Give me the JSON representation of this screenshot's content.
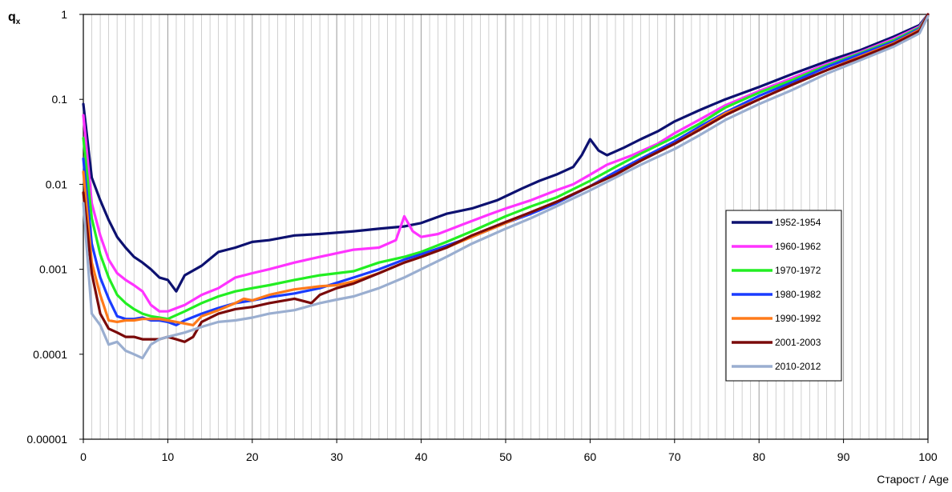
{
  "chart_data": {
    "type": "line",
    "ylabel": "q",
    "ylabel_sub": "x",
    "xlabel": "Старост / Age",
    "y_scale": "log",
    "xlim": [
      0,
      100
    ],
    "ylim": [
      1e-05,
      1
    ],
    "x_ticks": [
      "0",
      "10",
      "20",
      "30",
      "40",
      "50",
      "60",
      "70",
      "80",
      "90",
      "100"
    ],
    "y_ticks": [
      "0.00001",
      "0.0001",
      "0.001",
      "0.01",
      "0.1",
      "1"
    ],
    "grid": "vertical minor lines at every year",
    "legend_position": "lower-right",
    "series": [
      {
        "name": "1952-1954",
        "color": "#0d1170",
        "points": [
          [
            0,
            0.088
          ],
          [
            1,
            0.012
          ],
          [
            2,
            0.0065
          ],
          [
            3,
            0.0038
          ],
          [
            4,
            0.0024
          ],
          [
            5,
            0.0018
          ],
          [
            6,
            0.0014
          ],
          [
            7,
            0.0012
          ],
          [
            8,
            0.001
          ],
          [
            9,
            0.0008
          ],
          [
            10,
            0.00075
          ],
          [
            11,
            0.00055
          ],
          [
            12,
            0.00085
          ],
          [
            14,
            0.0011
          ],
          [
            16,
            0.0016
          ],
          [
            18,
            0.0018
          ],
          [
            20,
            0.0021
          ],
          [
            22,
            0.0022
          ],
          [
            25,
            0.0025
          ],
          [
            28,
            0.0026
          ],
          [
            32,
            0.0028
          ],
          [
            35,
            0.003
          ],
          [
            38,
            0.0032
          ],
          [
            40,
            0.0035
          ],
          [
            43,
            0.0045
          ],
          [
            46,
            0.0052
          ],
          [
            49,
            0.0065
          ],
          [
            52,
            0.009
          ],
          [
            54,
            0.011
          ],
          [
            56,
            0.013
          ],
          [
            58,
            0.016
          ],
          [
            59,
            0.022
          ],
          [
            60,
            0.034
          ],
          [
            61,
            0.025
          ],
          [
            62,
            0.022
          ],
          [
            64,
            0.027
          ],
          [
            66,
            0.034
          ],
          [
            68,
            0.042
          ],
          [
            70,
            0.055
          ],
          [
            73,
            0.075
          ],
          [
            76,
            0.1
          ],
          [
            80,
            0.14
          ],
          [
            84,
            0.2
          ],
          [
            88,
            0.28
          ],
          [
            92,
            0.38
          ],
          [
            96,
            0.55
          ],
          [
            99,
            0.75
          ],
          [
            100,
            1
          ]
        ]
      },
      {
        "name": "1960-1962",
        "color": "#ff33ff",
        "points": [
          [
            0,
            0.065
          ],
          [
            1,
            0.006
          ],
          [
            2,
            0.0025
          ],
          [
            3,
            0.0013
          ],
          [
            4,
            0.0009
          ],
          [
            5,
            0.00075
          ],
          [
            6,
            0.00065
          ],
          [
            7,
            0.00055
          ],
          [
            8,
            0.00038
          ],
          [
            9,
            0.00032
          ],
          [
            10,
            0.00032
          ],
          [
            12,
            0.00038
          ],
          [
            14,
            0.0005
          ],
          [
            16,
            0.0006
          ],
          [
            18,
            0.0008
          ],
          [
            20,
            0.0009
          ],
          [
            22,
            0.001
          ],
          [
            25,
            0.0012
          ],
          [
            28,
            0.0014
          ],
          [
            32,
            0.0017
          ],
          [
            35,
            0.0018
          ],
          [
            37,
            0.0022
          ],
          [
            38,
            0.0042
          ],
          [
            39,
            0.0028
          ],
          [
            40,
            0.0024
          ],
          [
            42,
            0.0026
          ],
          [
            45,
            0.0034
          ],
          [
            48,
            0.0044
          ],
          [
            50,
            0.0052
          ],
          [
            53,
            0.0065
          ],
          [
            56,
            0.0085
          ],
          [
            58,
            0.01
          ],
          [
            60,
            0.013
          ],
          [
            62,
            0.017
          ],
          [
            65,
            0.022
          ],
          [
            68,
            0.03
          ],
          [
            70,
            0.04
          ],
          [
            73,
            0.058
          ],
          [
            76,
            0.085
          ],
          [
            80,
            0.125
          ],
          [
            84,
            0.18
          ],
          [
            88,
            0.26
          ],
          [
            92,
            0.36
          ],
          [
            96,
            0.52
          ],
          [
            99,
            0.72
          ],
          [
            100,
            1
          ]
        ]
      },
      {
        "name": "1970-1972",
        "color": "#22ee22",
        "points": [
          [
            0,
            0.035
          ],
          [
            1,
            0.004
          ],
          [
            2,
            0.0015
          ],
          [
            3,
            0.0008
          ],
          [
            4,
            0.0005
          ],
          [
            5,
            0.0004
          ],
          [
            6,
            0.00034
          ],
          [
            7,
            0.0003
          ],
          [
            8,
            0.00028
          ],
          [
            9,
            0.00027
          ],
          [
            10,
            0.00026
          ],
          [
            12,
            0.00032
          ],
          [
            14,
            0.0004
          ],
          [
            16,
            0.00048
          ],
          [
            18,
            0.00055
          ],
          [
            20,
            0.0006
          ],
          [
            22,
            0.00065
          ],
          [
            25,
            0.00075
          ],
          [
            28,
            0.00085
          ],
          [
            32,
            0.00095
          ],
          [
            35,
            0.0012
          ],
          [
            38,
            0.0014
          ],
          [
            40,
            0.0016
          ],
          [
            43,
            0.0021
          ],
          [
            46,
            0.0028
          ],
          [
            50,
            0.0042
          ],
          [
            53,
            0.0055
          ],
          [
            56,
            0.007
          ],
          [
            60,
            0.011
          ],
          [
            63,
            0.016
          ],
          [
            66,
            0.023
          ],
          [
            70,
            0.036
          ],
          [
            73,
            0.052
          ],
          [
            76,
            0.08
          ],
          [
            80,
            0.12
          ],
          [
            84,
            0.17
          ],
          [
            88,
            0.25
          ],
          [
            92,
            0.35
          ],
          [
            96,
            0.5
          ],
          [
            99,
            0.7
          ],
          [
            100,
            1
          ]
        ]
      },
      {
        "name": "1980-1982",
        "color": "#1a3cff",
        "points": [
          [
            0,
            0.02
          ],
          [
            1,
            0.002
          ],
          [
            2,
            0.0008
          ],
          [
            3,
            0.00045
          ],
          [
            4,
            0.00028
          ],
          [
            5,
            0.00026
          ],
          [
            6,
            0.00026
          ],
          [
            7,
            0.00027
          ],
          [
            8,
            0.00025
          ],
          [
            9,
            0.00025
          ],
          [
            10,
            0.00024
          ],
          [
            11,
            0.00022
          ],
          [
            12,
            0.00025
          ],
          [
            14,
            0.0003
          ],
          [
            16,
            0.00035
          ],
          [
            18,
            0.0004
          ],
          [
            20,
            0.00043
          ],
          [
            22,
            0.00047
          ],
          [
            25,
            0.00052
          ],
          [
            28,
            0.0006
          ],
          [
            32,
            0.0008
          ],
          [
            35,
            0.001
          ],
          [
            38,
            0.0013
          ],
          [
            40,
            0.0015
          ],
          [
            43,
            0.0019
          ],
          [
            46,
            0.0024
          ],
          [
            50,
            0.0035
          ],
          [
            53,
            0.0045
          ],
          [
            56,
            0.006
          ],
          [
            60,
            0.0095
          ],
          [
            63,
            0.014
          ],
          [
            66,
            0.02
          ],
          [
            70,
            0.032
          ],
          [
            73,
            0.048
          ],
          [
            76,
            0.07
          ],
          [
            80,
            0.11
          ],
          [
            84,
            0.16
          ],
          [
            88,
            0.24
          ],
          [
            92,
            0.34
          ],
          [
            96,
            0.48
          ],
          [
            99,
            0.68
          ],
          [
            100,
            1
          ]
        ]
      },
      {
        "name": "1990-1992",
        "color": "#ff7a1a",
        "points": [
          [
            0,
            0.014
          ],
          [
            1,
            0.0012
          ],
          [
            2,
            0.0005
          ],
          [
            3,
            0.00025
          ],
          [
            4,
            0.00024
          ],
          [
            5,
            0.00025
          ],
          [
            6,
            0.00025
          ],
          [
            7,
            0.00026
          ],
          [
            8,
            0.00026
          ],
          [
            9,
            0.00026
          ],
          [
            10,
            0.00025
          ],
          [
            11,
            0.00024
          ],
          [
            12,
            0.00023
          ],
          [
            13,
            0.00022
          ],
          [
            14,
            0.00028
          ],
          [
            16,
            0.00033
          ],
          [
            18,
            0.0004
          ],
          [
            19,
            0.00045
          ],
          [
            20,
            0.00043
          ],
          [
            22,
            0.0005
          ],
          [
            25,
            0.00058
          ],
          [
            28,
            0.00063
          ],
          [
            30,
            0.00065
          ],
          [
            32,
            0.00072
          ],
          [
            35,
            0.0009
          ],
          [
            38,
            0.0012
          ],
          [
            40,
            0.0014
          ],
          [
            43,
            0.0018
          ],
          [
            46,
            0.0024
          ],
          [
            50,
            0.0035
          ],
          [
            53,
            0.0047
          ],
          [
            56,
            0.0062
          ],
          [
            60,
            0.0095
          ],
          [
            63,
            0.013
          ],
          [
            66,
            0.019
          ],
          [
            70,
            0.03
          ],
          [
            73,
            0.045
          ],
          [
            76,
            0.068
          ],
          [
            80,
            0.1
          ],
          [
            84,
            0.15
          ],
          [
            88,
            0.22
          ],
          [
            92,
            0.32
          ],
          [
            96,
            0.46
          ],
          [
            99,
            0.66
          ],
          [
            100,
            1
          ]
        ]
      },
      {
        "name": "2001-2003",
        "color": "#7a0a0a",
        "points": [
          [
            0,
            0.008
          ],
          [
            1,
            0.0009
          ],
          [
            2,
            0.0003
          ],
          [
            3,
            0.0002
          ],
          [
            4,
            0.00018
          ],
          [
            5,
            0.00016
          ],
          [
            6,
            0.00016
          ],
          [
            7,
            0.00015
          ],
          [
            8,
            0.00015
          ],
          [
            9,
            0.00015
          ],
          [
            10,
            0.00016
          ],
          [
            11,
            0.00015
          ],
          [
            12,
            0.00014
          ],
          [
            13,
            0.00016
          ],
          [
            14,
            0.00024
          ],
          [
            16,
            0.0003
          ],
          [
            18,
            0.00034
          ],
          [
            20,
            0.00036
          ],
          [
            22,
            0.0004
          ],
          [
            25,
            0.00045
          ],
          [
            27,
            0.0004
          ],
          [
            28,
            0.0005
          ],
          [
            30,
            0.0006
          ],
          [
            32,
            0.00068
          ],
          [
            35,
            0.0009
          ],
          [
            38,
            0.0012
          ],
          [
            40,
            0.0014
          ],
          [
            43,
            0.0018
          ],
          [
            46,
            0.0025
          ],
          [
            50,
            0.0036
          ],
          [
            53,
            0.0047
          ],
          [
            56,
            0.0062
          ],
          [
            60,
            0.0095
          ],
          [
            63,
            0.013
          ],
          [
            66,
            0.019
          ],
          [
            70,
            0.03
          ],
          [
            73,
            0.044
          ],
          [
            76,
            0.065
          ],
          [
            80,
            0.1
          ],
          [
            84,
            0.15
          ],
          [
            88,
            0.22
          ],
          [
            92,
            0.31
          ],
          [
            96,
            0.45
          ],
          [
            99,
            0.64
          ],
          [
            100,
            1
          ]
        ]
      },
      {
        "name": "2010-2012",
        "color": "#9aaed0",
        "points": [
          [
            0,
            0.006
          ],
          [
            1,
            0.0003
          ],
          [
            2,
            0.00022
          ],
          [
            3,
            0.00013
          ],
          [
            4,
            0.00014
          ],
          [
            5,
            0.00011
          ],
          [
            6,
            0.0001
          ],
          [
            7,
            9e-05
          ],
          [
            8,
            0.00013
          ],
          [
            9,
            0.00015
          ],
          [
            10,
            0.00016
          ],
          [
            12,
            0.00018
          ],
          [
            14,
            0.00021
          ],
          [
            16,
            0.00024
          ],
          [
            18,
            0.00025
          ],
          [
            20,
            0.00027
          ],
          [
            22,
            0.0003
          ],
          [
            25,
            0.00033
          ],
          [
            28,
            0.0004
          ],
          [
            30,
            0.00044
          ],
          [
            32,
            0.00048
          ],
          [
            35,
            0.0006
          ],
          [
            38,
            0.0008
          ],
          [
            40,
            0.001
          ],
          [
            43,
            0.0014
          ],
          [
            46,
            0.002
          ],
          [
            50,
            0.003
          ],
          [
            53,
            0.004
          ],
          [
            56,
            0.0055
          ],
          [
            60,
            0.0085
          ],
          [
            63,
            0.012
          ],
          [
            66,
            0.017
          ],
          [
            70,
            0.026
          ],
          [
            73,
            0.038
          ],
          [
            76,
            0.057
          ],
          [
            80,
            0.088
          ],
          [
            84,
            0.13
          ],
          [
            88,
            0.2
          ],
          [
            92,
            0.29
          ],
          [
            96,
            0.42
          ],
          [
            99,
            0.6
          ],
          [
            100,
            0.95
          ]
        ]
      }
    ]
  }
}
